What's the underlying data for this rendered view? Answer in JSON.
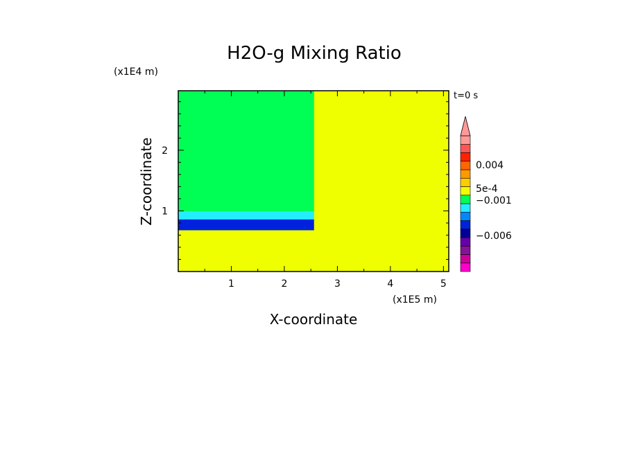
{
  "chart_data": {
    "type": "heatmap",
    "title": "H2O-g Mixing Ratio",
    "time_label": "t=0 s",
    "xlabel": "X-coordinate",
    "ylabel": "Z-coordinate",
    "x_multiplier": "(x1E5 m)",
    "y_multiplier": "(x1E4 m)",
    "xlim": [
      0,
      5.1
    ],
    "ylim": [
      0,
      2.98
    ],
    "xticks": [
      "1",
      "2",
      "3",
      "4",
      "5"
    ],
    "yticks": [
      "1",
      "2"
    ],
    "background_color": "#f0ff00",
    "regions": [
      {
        "x": [
          0,
          2.56
        ],
        "y": [
          0.68,
          0.86
        ],
        "color": "#0022dd"
      },
      {
        "x": [
          0,
          2.56
        ],
        "y": [
          0.86,
          0.99
        ],
        "color": "#22eeff"
      },
      {
        "x": [
          0,
          2.56
        ],
        "y": [
          0.99,
          2.98
        ],
        "color": "#00ff55"
      }
    ],
    "colorbar": {
      "colors_bottom_to_top": [
        "#ff00cc",
        "#cc0099",
        "#881199",
        "#6600aa",
        "#000099",
        "#0022dd",
        "#0088ff",
        "#22eeff",
        "#00ff55",
        "#f0ff00",
        "#ffcc00",
        "#ff9900",
        "#ff6600",
        "#ff2200",
        "#ff5555",
        "#ff9999"
      ],
      "labels": [
        "0.004",
        "5e-4",
        "-0.001",
        "-0.006"
      ]
    }
  }
}
